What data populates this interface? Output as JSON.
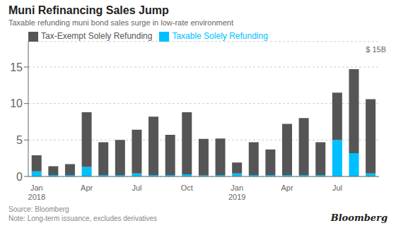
{
  "chart_data": {
    "type": "bar",
    "title": "Muni Refinancing Sales Jump",
    "subtitle": "Taxable refunding muni bond sales surge in low-rate environment",
    "ylabel": "$ 15B",
    "annotations": [
      "Source: Bloomberg\nNote: Long-term issuance, excludes derivatives",
      "Bloomberg"
    ],
    "categories": [
      "Jan\n2018",
      null,
      null,
      "Apr",
      null,
      null,
      "Jul",
      null,
      null,
      "Oct",
      null,
      null,
      "Jan\n2019",
      null,
      null,
      "Apr",
      null,
      null,
      "Jul",
      null,
      null
    ],
    "series": [
      {
        "name": "Taxable Solely Refunding",
        "color": "#00BFFF",
        "values": [
          0.7,
          0.2,
          0.2,
          1.3,
          0.2,
          0.2,
          0.4,
          0.2,
          0.2,
          0.3,
          0.15,
          0.2,
          0.4,
          0.2,
          0.2,
          0.2,
          0.2,
          0.2,
          5.0,
          3.2,
          0.4
        ]
      },
      {
        "name": "Tax-Exempt Solely Refunding",
        "color": "#555555",
        "values": [
          2.2,
          1.2,
          1.5,
          7.5,
          4.5,
          4.8,
          6.0,
          8.0,
          5.5,
          8.5,
          5.0,
          5.0,
          1.5,
          4.5,
          3.5,
          7.0,
          7.8,
          4.5,
          6.5,
          11.5,
          10.2
        ]
      }
    ],
    "stacked": true,
    "ylim": [
      0,
      18.5
    ],
    "yticks": [
      0,
      5,
      10,
      15
    ],
    "grid": true,
    "legend": "upper left"
  }
}
